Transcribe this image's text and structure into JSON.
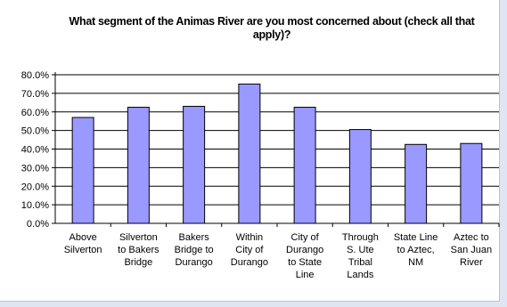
{
  "chart_data": {
    "type": "bar",
    "title": "What segment of the Animas River are you most concerned about (check all that apply)?",
    "categories": [
      [
        "Above",
        "Silverton"
      ],
      [
        "Silverton",
        "to Bakers",
        "Bridge"
      ],
      [
        "Bakers",
        "Bridge to",
        "Durango"
      ],
      [
        "Within",
        "City of",
        "Durango"
      ],
      [
        "City of",
        "Durango",
        "to State",
        "Line"
      ],
      [
        "Through",
        "S. Ute",
        "Tribal",
        "Lands"
      ],
      [
        "State Line",
        "to Aztec,",
        "NM"
      ],
      [
        "Aztec to",
        "San Juan",
        "River"
      ]
    ],
    "values": [
      57.0,
      62.5,
      63.0,
      75.0,
      62.5,
      50.5,
      42.5,
      43.0
    ],
    "ylim": [
      0,
      80
    ],
    "yticks": [
      "0.0%",
      "10.0%",
      "20.0%",
      "30.0%",
      "40.0%",
      "50.0%",
      "60.0%",
      "70.0%",
      "80.0%"
    ],
    "grid": true,
    "bar_color": "#9999ff",
    "bar_edge_color": "#000000"
  }
}
